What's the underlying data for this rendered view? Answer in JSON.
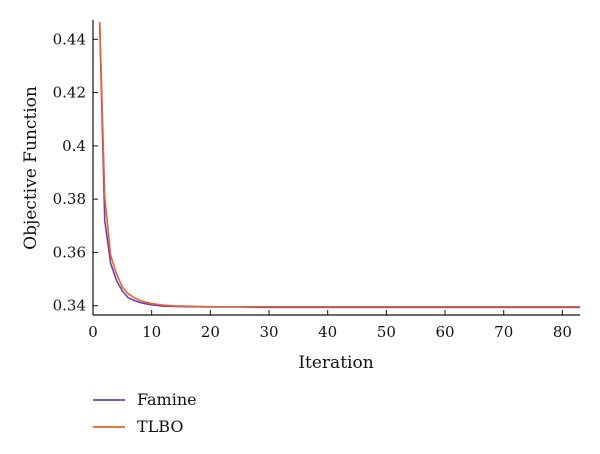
{
  "chart_data": {
    "type": "line",
    "xlabel": "Iteration",
    "ylabel": "Objective Function",
    "xlim": [
      0,
      83
    ],
    "ylim": [
      0.3365,
      0.4465
    ],
    "x_ticks": [
      0,
      10,
      20,
      30,
      40,
      50,
      60,
      70,
      80
    ],
    "y_ticks": [
      0.34,
      0.36,
      0.38,
      0.4,
      0.42,
      0.44
    ],
    "y_tick_labels": [
      "0.34",
      "0.36",
      "0.38",
      "0.4",
      "0.42",
      "0.44"
    ],
    "grid": false,
    "legend_position": "bottom-left",
    "series": [
      {
        "name": "Famine",
        "color": "#6a3fb8",
        "x": [
          1,
          2,
          3,
          4,
          5,
          6,
          7,
          8,
          9,
          10,
          12,
          14,
          16,
          18,
          20,
          25,
          30,
          40,
          50,
          60,
          70,
          80,
          83
        ],
        "y": [
          0.458,
          0.372,
          0.356,
          0.3495,
          0.3455,
          0.343,
          0.342,
          0.3412,
          0.3407,
          0.3403,
          0.3398,
          0.3397,
          0.3396,
          0.3396,
          0.3395,
          0.3395,
          0.3394,
          0.3394,
          0.3394,
          0.3394,
          0.3394,
          0.3394,
          0.3394
        ]
      },
      {
        "name": "TLBO",
        "color": "#e8622a",
        "x": [
          1,
          2,
          3,
          4,
          5,
          6,
          7,
          8,
          9,
          10,
          12,
          14,
          16,
          18,
          20,
          25,
          30,
          40,
          50,
          60,
          70,
          80,
          83
        ],
        "y": [
          0.458,
          0.381,
          0.359,
          0.352,
          0.347,
          0.3445,
          0.343,
          0.342,
          0.3413,
          0.3408,
          0.3402,
          0.3399,
          0.3398,
          0.3397,
          0.3396,
          0.3396,
          0.3396,
          0.3396,
          0.3396,
          0.3396,
          0.3396,
          0.3396,
          0.3396
        ]
      }
    ]
  }
}
